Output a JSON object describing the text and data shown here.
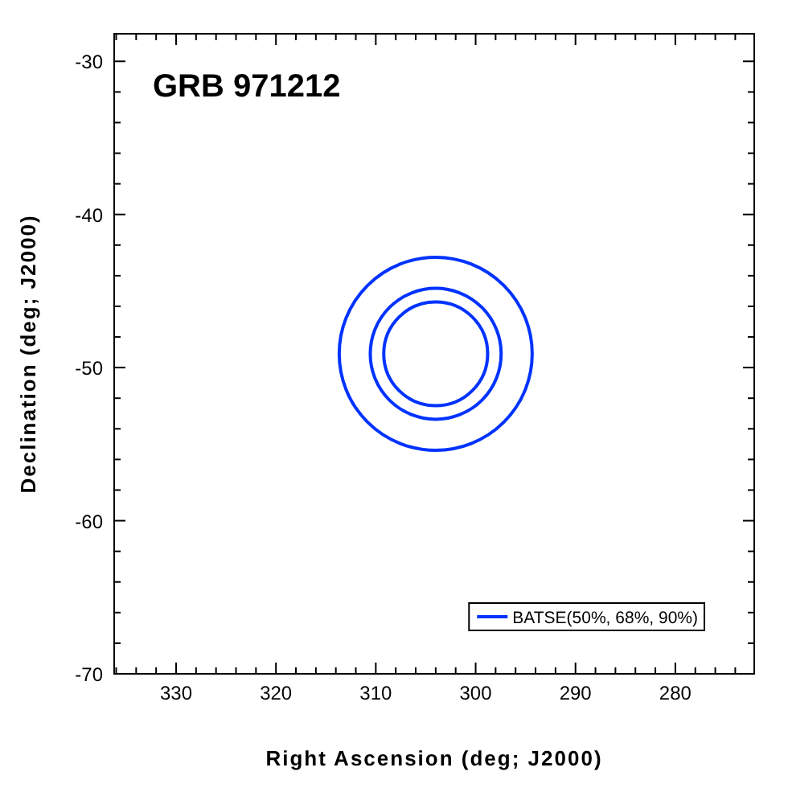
{
  "chart_data": {
    "type": "bubble",
    "title": "GRB 971212",
    "xlabel": "Right Ascension (deg; J2000)",
    "ylabel": "Declination (deg; J2000)",
    "xlim": [
      336.2,
      272.1
    ],
    "ylim": [
      -70,
      -28.2
    ],
    "xticks": [
      {
        "value": 336,
        "label": null
      },
      {
        "value": 334,
        "label": null
      },
      {
        "value": 332,
        "label": null
      },
      330,
      {
        "value": 328,
        "label": null
      },
      {
        "value": 326,
        "label": null
      },
      {
        "value": 324,
        "label": null
      },
      {
        "value": 322,
        "label": null
      },
      320,
      {
        "value": 318,
        "label": null
      },
      {
        "value": 316,
        "label": null
      },
      {
        "value": 314,
        "label": null
      },
      {
        "value": 312,
        "label": null
      },
      310,
      {
        "value": 308,
        "label": null
      },
      {
        "value": 306,
        "label": null
      },
      {
        "value": 304,
        "label": null
      },
      {
        "value": 302,
        "label": null
      },
      300,
      {
        "value": 298,
        "label": null
      },
      {
        "value": 296,
        "label": null
      },
      {
        "value": 294,
        "label": null
      },
      {
        "value": 292,
        "label": null
      },
      290,
      {
        "value": 288,
        "label": null
      },
      {
        "value": 286,
        "label": null
      },
      {
        "value": 284,
        "label": null
      },
      {
        "value": 282,
        "label": null
      },
      280,
      {
        "value": 278,
        "label": null
      },
      {
        "value": 276,
        "label": null
      },
      {
        "value": 274,
        "label": null
      }
    ],
    "yticks": [
      -70,
      {
        "value": -68,
        "label": null
      },
      {
        "value": -66,
        "label": null
      },
      {
        "value": -64,
        "label": null
      },
      {
        "value": -62,
        "label": null
      },
      -60,
      {
        "value": -58,
        "label": null
      },
      {
        "value": -56,
        "label": null
      },
      {
        "value": -54,
        "label": null
      },
      {
        "value": -52,
        "label": null
      },
      -50,
      {
        "value": -48,
        "label": null
      },
      {
        "value": -46,
        "label": null
      },
      {
        "value": -44,
        "label": null
      },
      {
        "value": -42,
        "label": null
      },
      -40,
      {
        "value": -38,
        "label": null
      },
      {
        "value": -36,
        "label": null
      },
      {
        "value": -34,
        "label": null
      },
      {
        "value": -32,
        "label": null
      },
      -30
    ],
    "legend": "bottom right",
    "x": [
      304.0
    ],
    "series": [
      {
        "name": "BATSE(50%, 68%, 90%)",
        "color": "#0033ff",
        "values": [
          -49.1
        ],
        "sizes": [
          0.29
        ]
      },
      {
        "color": "#0033ff",
        "values": [
          -49.1
        ],
        "sizes": [
          0.46
        ]
      },
      {
        "color": "#0033ff",
        "values": [
          -49.1
        ],
        "sizes": [
          1
        ]
      }
    ]
  }
}
